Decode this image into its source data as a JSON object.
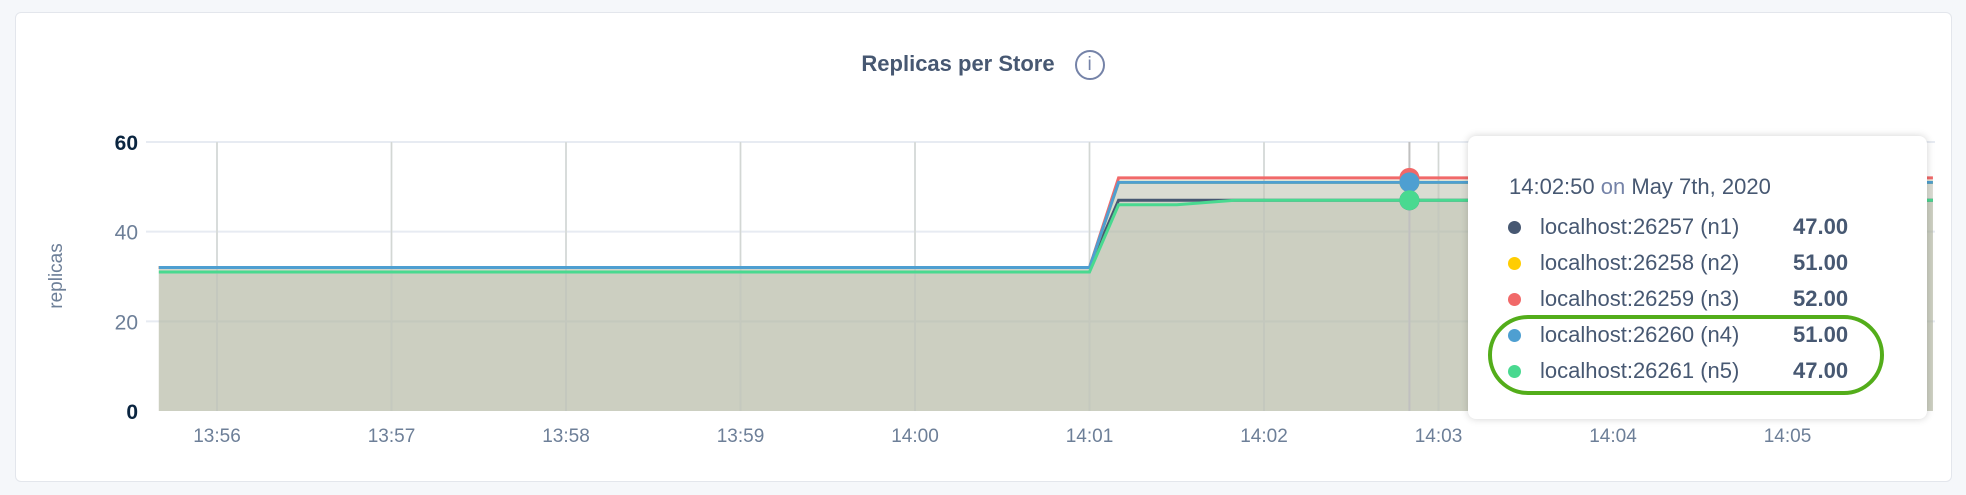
{
  "chart_data": {
    "type": "line",
    "title": "Replicas per Store",
    "ylabel": "replicas",
    "xlabel": "",
    "ylim": [
      0,
      60
    ],
    "yticks": [
      "0",
      "20",
      "40",
      "60"
    ],
    "xticks": [
      "13:56",
      "13:57",
      "13:58",
      "13:59",
      "14:00",
      "14:01",
      "14:02",
      "14:03",
      "14:04",
      "14:05"
    ],
    "grid": true,
    "area_fill": true,
    "series": [
      {
        "name": "localhost:26257 (n1)",
        "color": "#475872",
        "x": [
          "13:55:40",
          "14:01:00",
          "14:01:10",
          "14:05:50"
        ],
        "values": [
          32,
          32,
          47,
          47
        ]
      },
      {
        "name": "localhost:26258 (n2)",
        "color": "#ffcd02",
        "x": [
          "13:55:40",
          "14:01:00",
          "14:01:10",
          "14:05:50"
        ],
        "values": [
          32,
          32,
          51,
          51
        ]
      },
      {
        "name": "localhost:26259 (n3)",
        "color": "#f16969",
        "x": [
          "13:55:40",
          "14:01:00",
          "14:01:10",
          "14:05:50"
        ],
        "values": [
          32,
          32,
          52,
          52
        ]
      },
      {
        "name": "localhost:26260 (n4)",
        "color": "#4e9fd1",
        "x": [
          "13:55:40",
          "14:01:00",
          "14:01:10",
          "14:05:50"
        ],
        "values": [
          32,
          32,
          51,
          51
        ]
      },
      {
        "name": "localhost:26261 (n5)",
        "color": "#49d990",
        "x": [
          "13:55:40",
          "14:01:00",
          "14:01:10",
          "14:01:30",
          "14:01:50",
          "14:05:50"
        ],
        "values": [
          31,
          31,
          46,
          46,
          47,
          47
        ]
      }
    ],
    "hover": {
      "time": "14:02:50"
    }
  },
  "info_icon": "info-icon",
  "tooltip": {
    "time": "14:02:50",
    "on": "on",
    "date": "May 7th, 2020",
    "rows": [
      {
        "label": "localhost:26257 (n1)",
        "value": "47.00",
        "color": "#475872"
      },
      {
        "label": "localhost:26258 (n2)",
        "value": "51.00",
        "color": "#ffcd02"
      },
      {
        "label": "localhost:26259 (n3)",
        "value": "52.00",
        "color": "#f16969"
      },
      {
        "label": "localhost:26260 (n4)",
        "value": "51.00",
        "color": "#4e9fd1"
      },
      {
        "label": "localhost:26261 (n5)",
        "value": "47.00",
        "color": "#49d990"
      }
    ],
    "highlight_color": "#53ad1a"
  }
}
